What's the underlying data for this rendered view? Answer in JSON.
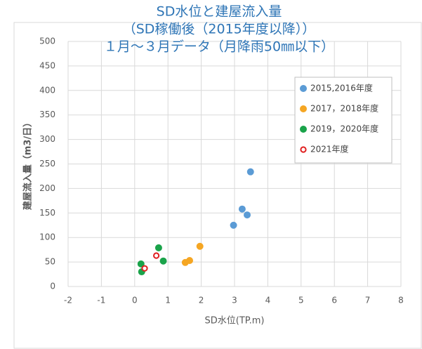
{
  "chart_data": {
    "type": "scatter",
    "title": [
      "SD水位と建屋流入量",
      "（SD稼働後（2015年度以降））",
      "１月～３月データ（月降雨50㎜以下）"
    ],
    "x_label": "SD水位(TP.m)",
    "y_label": "建屋流入量（m3/日）",
    "xlim": [
      -2,
      8
    ],
    "xticks": [
      -2,
      -1,
      0,
      1,
      2,
      3,
      4,
      5,
      6,
      7,
      8
    ],
    "ylim": [
      0,
      500
    ],
    "yticks": [
      0,
      50,
      100,
      150,
      200,
      250,
      300,
      350,
      400,
      450,
      500
    ],
    "grid": true,
    "legend": "upper right",
    "series": [
      {
        "name": "2015,2016年度",
        "color": "#5b9bd5",
        "marker": "filled",
        "x": [
          2.97,
          3.23,
          3.38,
          3.48
        ],
        "values": [
          125,
          158,
          146,
          234
        ]
      },
      {
        "name": "2017，2018年度",
        "color": "#f5a623",
        "marker": "filled",
        "x": [
          1.52,
          1.65,
          1.96
        ],
        "values": [
          49,
          53,
          82
        ]
      },
      {
        "name": "2019，2020年度",
        "color": "#1aa34a",
        "marker": "filled",
        "x": [
          0.19,
          0.21,
          0.72,
          0.86
        ],
        "values": [
          46,
          30,
          79,
          52
        ]
      },
      {
        "name": "2021年度",
        "color": "#e02020",
        "marker": "open",
        "x": [
          0.3,
          0.65
        ],
        "values": [
          37,
          63
        ]
      }
    ]
  }
}
